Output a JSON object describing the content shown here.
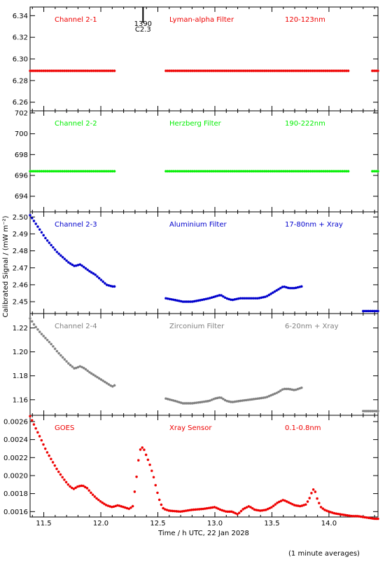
{
  "figure": {
    "ylabel": "Calibrated Signal / (mW m⁻²)",
    "xlabel": "Time / h UTC, 22 Jan 2028",
    "footnote": "(1 minute averages)",
    "marker": {
      "label_top": "1390",
      "label_bottom": "C2.3",
      "x": 12.37
    }
  },
  "chart_data": [
    {
      "type": "scatter",
      "labels": [
        "Channel 2-1",
        "Lyman-alpha Filter",
        "120-123nm"
      ],
      "color": "#ee0000",
      "xlim": [
        11.38,
        14.43
      ],
      "ylim": [
        6.252,
        6.348
      ],
      "yticks": [
        6.26,
        6.28,
        6.3,
        6.32,
        6.34
      ],
      "ytick_labels": [
        "6.26",
        "6.28",
        "6.30",
        "6.32",
        "6.34"
      ],
      "segments": [
        {
          "x": [
            11.38,
            12.12
          ],
          "y": [
            6.289,
            6.289
          ]
        },
        {
          "x": [
            12.57,
            14.17
          ],
          "y": [
            6.289,
            6.289
          ]
        },
        {
          "x": [
            14.38,
            14.43
          ],
          "y": [
            6.289,
            6.289
          ]
        }
      ]
    },
    {
      "type": "scatter",
      "labels": [
        "Channel 2-2",
        "Herzberg Filter",
        "190-222nm"
      ],
      "color": "#00ee00",
      "xlim": [
        11.38,
        14.43
      ],
      "ylim": [
        692.5,
        702.2
      ],
      "yticks": [
        694,
        696,
        698,
        700,
        702
      ],
      "ytick_labels": [
        "694",
        "696",
        "698",
        "700",
        "702"
      ],
      "segments": [
        {
          "x": [
            11.38,
            12.12
          ],
          "y": [
            696.4,
            696.4
          ]
        },
        {
          "x": [
            12.57,
            14.17
          ],
          "y": [
            696.4,
            696.4
          ]
        },
        {
          "x": [
            14.38,
            14.43
          ],
          "y": [
            696.4,
            696.4
          ]
        }
      ]
    },
    {
      "type": "scatter",
      "labels": [
        "Channel 2-3",
        "Aluminium Filter",
        "17-80nm + Xray"
      ],
      "color": "#0000cc",
      "xlim": [
        11.38,
        14.43
      ],
      "ylim": [
        2.443,
        2.503
      ],
      "yticks": [
        2.45,
        2.46,
        2.47,
        2.48,
        2.49,
        2.5
      ],
      "ytick_labels": [
        "2.45",
        "2.46",
        "2.47",
        "2.48",
        "2.49",
        "2.50"
      ],
      "segments": [
        {
          "x": [
            11.38,
            11.42,
            11.47,
            11.52,
            11.57,
            11.62,
            11.67,
            11.72,
            11.77,
            11.82,
            11.86,
            11.9,
            11.95,
            12.0,
            12.05,
            12.1,
            12.12
          ],
          "y": [
            2.501,
            2.497,
            2.492,
            2.487,
            2.483,
            2.479,
            2.476,
            2.473,
            2.471,
            2.472,
            2.47,
            2.468,
            2.466,
            2.463,
            2.46,
            2.459,
            2.459
          ]
        },
        {
          "x": [
            12.57,
            12.65,
            12.72,
            12.8,
            12.88,
            12.95,
            13.0,
            13.05,
            13.1,
            13.15,
            13.22,
            13.3,
            13.38,
            13.45,
            13.5,
            13.55,
            13.6,
            13.65,
            13.7,
            13.76
          ],
          "y": [
            2.452,
            2.451,
            2.45,
            2.45,
            2.451,
            2.452,
            2.453,
            2.454,
            2.452,
            2.451,
            2.452,
            2.452,
            2.452,
            2.453,
            2.455,
            2.457,
            2.459,
            2.458,
            2.458,
            2.459
          ]
        },
        {
          "x": [
            14.3,
            14.43
          ],
          "y": [
            2.4445,
            2.4445
          ]
        }
      ]
    },
    {
      "type": "scatter",
      "labels": [
        "Channel 2-4",
        "Zirconium Filter",
        "6-20nm + Xray"
      ],
      "color": "#808080",
      "xlim": [
        11.38,
        14.43
      ],
      "ylim": [
        1.147,
        1.232
      ],
      "yticks": [
        1.16,
        1.18,
        1.2,
        1.22
      ],
      "ytick_labels": [
        "1.16",
        "1.18",
        "1.20",
        "1.22"
      ],
      "segments": [
        {
          "x": [
            11.38,
            11.42,
            11.47,
            11.52,
            11.57,
            11.62,
            11.67,
            11.72,
            11.77,
            11.82,
            11.86,
            11.9,
            11.95,
            12.0,
            12.05,
            12.1,
            12.12
          ],
          "y": [
            1.228,
            1.222,
            1.216,
            1.211,
            1.206,
            1.2,
            1.195,
            1.19,
            1.186,
            1.188,
            1.186,
            1.183,
            1.18,
            1.177,
            1.174,
            1.171,
            1.172
          ]
        },
        {
          "x": [
            12.57,
            12.65,
            12.72,
            12.8,
            12.88,
            12.95,
            13.0,
            13.05,
            13.1,
            13.15,
            13.22,
            13.3,
            13.38,
            13.45,
            13.5,
            13.55,
            13.6,
            13.65,
            13.7,
            13.76
          ],
          "y": [
            1.161,
            1.159,
            1.157,
            1.157,
            1.158,
            1.159,
            1.161,
            1.162,
            1.159,
            1.158,
            1.159,
            1.16,
            1.161,
            1.162,
            1.164,
            1.166,
            1.169,
            1.169,
            1.168,
            1.17
          ]
        },
        {
          "x": [
            14.3,
            14.43
          ],
          "y": [
            1.1505,
            1.1505
          ]
        }
      ]
    },
    {
      "type": "scatter",
      "labels": [
        "GOES",
        "Xray Sensor",
        "0.1-0.8nm"
      ],
      "color": "#ee0000",
      "xlim": [
        11.38,
        14.43
      ],
      "ylim": [
        0.00154,
        0.00267
      ],
      "yticks": [
        0.0016,
        0.0018,
        0.002,
        0.0022,
        0.0024,
        0.0026
      ],
      "ytick_labels": [
        "0.0016",
        "0.0018",
        "0.0020",
        "0.0022",
        "0.0024",
        "0.0026"
      ],
      "segments": [
        {
          "x": [
            11.38,
            11.42,
            11.47,
            11.52,
            11.57,
            11.62,
            11.67,
            11.72,
            11.76,
            11.8,
            11.84,
            11.88,
            11.92,
            11.96,
            12.0,
            12.05,
            12.1,
            12.15,
            12.2,
            12.25,
            12.28,
            12.31,
            12.34,
            12.37,
            12.4,
            12.43,
            12.46,
            12.49,
            12.52,
            12.55,
            12.6,
            12.7,
            12.8,
            12.9,
            12.95,
            13.0,
            13.05,
            13.1,
            13.15,
            13.2,
            13.25,
            13.3,
            13.35,
            13.4,
            13.45,
            13.5,
            13.55,
            13.6,
            13.65,
            13.7,
            13.75,
            13.8,
            13.83,
            13.86,
            13.88,
            13.9,
            13.93,
            13.96,
            14.0,
            14.05,
            14.1,
            14.15,
            14.2,
            14.25,
            14.3,
            14.35,
            14.4,
            14.43
          ],
          "y": [
            0.00266,
            0.00255,
            0.00242,
            0.00228,
            0.00217,
            0.00206,
            0.00197,
            0.00189,
            0.00185,
            0.00188,
            0.00189,
            0.00186,
            0.0018,
            0.00175,
            0.00171,
            0.00167,
            0.00165,
            0.00167,
            0.00165,
            0.00163,
            0.00166,
            0.00195,
            0.00228,
            0.00232,
            0.00222,
            0.00212,
            0.002,
            0.00184,
            0.0017,
            0.00163,
            0.00161,
            0.0016,
            0.00162,
            0.00163,
            0.00164,
            0.00165,
            0.00162,
            0.0016,
            0.0016,
            0.00157,
            0.00163,
            0.00166,
            0.00162,
            0.00161,
            0.00162,
            0.00165,
            0.0017,
            0.00173,
            0.0017,
            0.00167,
            0.00166,
            0.00168,
            0.00175,
            0.00185,
            0.00182,
            0.00173,
            0.00165,
            0.00162,
            0.0016,
            0.00158,
            0.00157,
            0.00156,
            0.00155,
            0.00155,
            0.00154,
            0.00153,
            0.00152,
            0.00152
          ]
        }
      ]
    }
  ],
  "xaxis": {
    "ticks": [
      11.5,
      12.0,
      12.5,
      13.0,
      13.5,
      14.0
    ],
    "tick_labels": [
      "11.5",
      "12.0",
      "12.5",
      "13.0",
      "13.5",
      "14.0"
    ],
    "minor_step": 0.1
  }
}
